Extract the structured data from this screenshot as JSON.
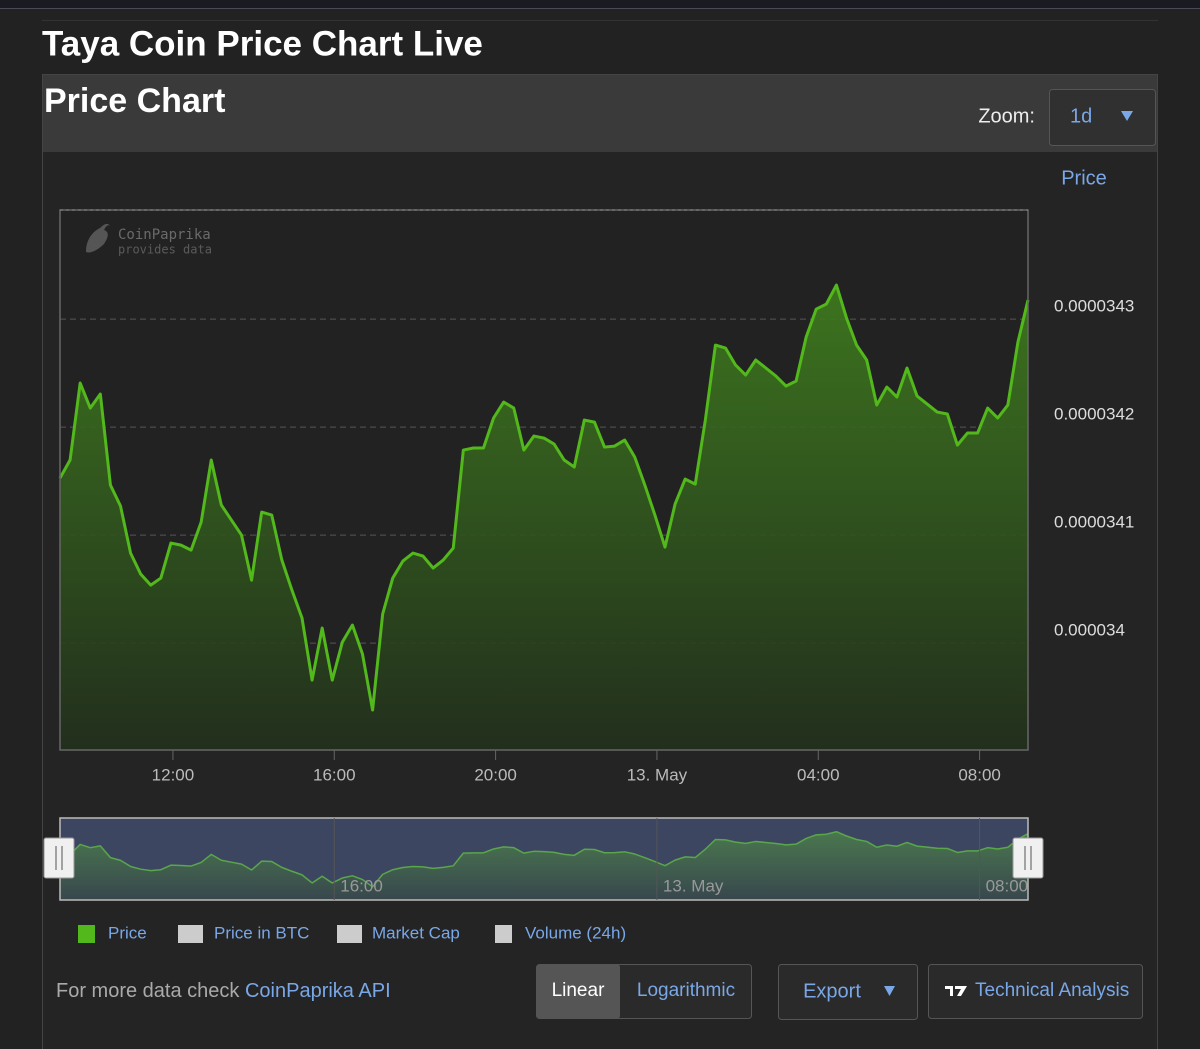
{
  "header": {
    "title": "Taya Coin Price Chart Live"
  },
  "panel": {
    "title": "Price Chart",
    "zoom_label": "Zoom:",
    "zoom_value": "1d"
  },
  "chart_data": {
    "type": "line",
    "y_axis_label": "Price",
    "watermark": [
      "CoinPaprika",
      "provides data"
    ],
    "x": [
      9.2,
      9.45,
      9.7,
      9.95,
      10.2,
      10.45,
      10.7,
      10.95,
      11.2,
      11.45,
      11.7,
      11.95,
      12.2,
      12.45,
      12.7,
      12.95,
      13.2,
      13.45,
      13.7,
      13.95,
      14.2,
      14.45,
      14.7,
      14.95,
      15.2,
      15.45,
      15.7,
      15.95,
      16.2,
      16.45,
      16.7,
      16.95,
      17.2,
      17.45,
      17.7,
      17.95,
      18.2,
      18.45,
      18.7,
      18.95,
      19.2,
      19.45,
      19.7,
      19.95,
      20.2,
      20.45,
      20.7,
      20.95,
      21.2,
      21.45,
      21.7,
      21.95,
      22.2,
      22.45,
      22.7,
      22.95,
      23.2,
      23.45,
      23.7,
      23.95,
      24.2,
      24.45,
      24.7,
      24.95,
      25.2,
      25.45,
      25.7,
      25.95,
      26.2,
      26.45,
      26.7,
      26.95,
      27.2,
      27.45,
      27.7,
      27.95,
      28.2,
      28.45,
      28.7,
      28.95,
      29.2,
      29.45,
      29.7,
      29.95,
      30.2,
      30.45,
      30.7,
      30.95,
      31.2,
      31.45,
      31.7,
      31.95,
      32.2,
      32.45,
      32.7,
      32.95,
      33.2
    ],
    "series": [
      {
        "name": "Price",
        "color": "#52b81c",
        "values": [
          3.41528e-05,
          3.41695e-05,
          3.42408e-05,
          3.42176e-05,
          3.42306e-05,
          3.41463e-05,
          3.41269e-05,
          3.40833e-05,
          3.40639e-05,
          3.40537e-05,
          3.40602e-05,
          3.40926e-05,
          3.40907e-05,
          3.40861e-05,
          3.4112e-05,
          3.41695e-05,
          3.41278e-05,
          3.41139e-05,
          3.41e-05,
          3.40583e-05,
          3.41213e-05,
          3.41185e-05,
          3.40769e-05,
          3.40491e-05,
          3.40232e-05,
          3.39657e-05,
          3.40139e-05,
          3.39657e-05,
          3.40009e-05,
          3.40167e-05,
          3.39898e-05,
          3.3938e-05,
          3.40269e-05,
          3.40602e-05,
          3.40759e-05,
          3.40833e-05,
          3.40806e-05,
          3.40695e-05,
          3.40769e-05,
          3.4088e-05,
          3.41787e-05,
          3.41806e-05,
          3.41806e-05,
          3.42084e-05,
          3.42232e-05,
          3.42176e-05,
          3.41787e-05,
          3.41917e-05,
          3.41898e-05,
          3.41843e-05,
          3.41695e-05,
          3.4163e-05,
          3.42065e-05,
          3.42046e-05,
          3.41815e-05,
          3.41824e-05,
          3.4188e-05,
          3.41722e-05,
          3.41463e-05,
          3.41185e-05,
          3.40889e-05,
          3.41287e-05,
          3.41519e-05,
          3.41472e-05,
          3.42065e-05,
          3.42759e-05,
          3.42732e-05,
          3.42574e-05,
          3.42482e-05,
          3.42621e-05,
          3.42547e-05,
          3.42472e-05,
          3.4238e-05,
          3.42426e-05,
          3.42834e-05,
          3.43093e-05,
          3.43139e-05,
          3.43315e-05,
          3.4301e-05,
          3.42759e-05,
          3.42621e-05,
          3.42204e-05,
          3.42371e-05,
          3.42278e-05,
          3.42547e-05,
          3.42287e-05,
          3.42213e-05,
          3.42139e-05,
          3.42121e-05,
          3.41833e-05,
          3.41945e-05,
          3.41945e-05,
          3.42176e-05,
          3.42084e-05,
          3.42204e-05,
          3.42787e-05,
          3.43176e-05
        ]
      }
    ],
    "hidden_series": [
      {
        "name": "Price in BTC",
        "color": "#cccccc"
      },
      {
        "name": "Market Cap",
        "color": "#cccccc"
      },
      {
        "name": "Volume (24h)",
        "color": "#cccccc"
      }
    ],
    "xlim": [
      9.2,
      33.2
    ],
    "xticks": [
      {
        "value": 12,
        "label": "12:00"
      },
      {
        "value": 16,
        "label": "16:00"
      },
      {
        "value": 20,
        "label": "20:00"
      },
      {
        "value": 24,
        "label": "13. May"
      },
      {
        "value": 28,
        "label": "04:00"
      },
      {
        "value": 32,
        "label": "08:00"
      }
    ],
    "navigator_xticks": [
      {
        "value": 16,
        "label": "16:00"
      },
      {
        "value": 24,
        "label": "13. May"
      },
      {
        "value": 32,
        "label": "08:00"
      }
    ],
    "ylim": [
      3.3901e-05,
      3.4401e-05
    ],
    "yticks": [
      3.4e-05,
      3.41e-05,
      3.42e-05,
      3.43e-05
    ],
    "grid": true
  },
  "footer": {
    "note": "For more data check",
    "link": "CoinPaprika API",
    "scale_buttons": [
      "Linear",
      "Logarithmic"
    ],
    "export": "Export",
    "technical": "Technical Analysis"
  }
}
